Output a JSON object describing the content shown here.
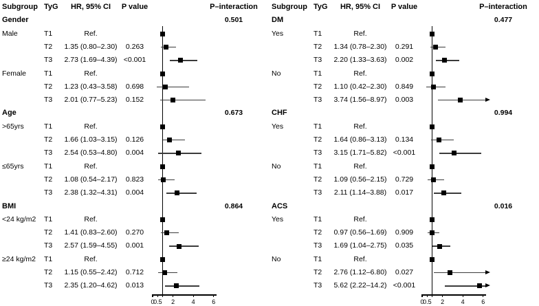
{
  "chart_data": {
    "type": "forest",
    "title": "",
    "columns": {
      "subgroup": "Subgroup",
      "tyg": "TyG",
      "hr_ci": "HR, 95% CI",
      "p_value": "P value",
      "p_interaction": "P–interaction"
    },
    "axis": {
      "min": 0,
      "max": 6,
      "ref_line": 1,
      "ticks": [
        0,
        0.5,
        1,
        2,
        4,
        6
      ],
      "tick_labels": [
        {
          "value": 0,
          "text": "0"
        },
        {
          "value": 0.5,
          "text": "0.5"
        },
        {
          "value": 2,
          "text": "2"
        },
        {
          "value": 4,
          "text": "4"
        },
        {
          "value": 6,
          "text": "6"
        }
      ]
    },
    "marker_color": "#000000",
    "ci_line_color": "#3a3a3a",
    "panels": [
      {
        "sections": [
          {
            "label": "Gender",
            "p_interaction": "0.501",
            "groups": [
              {
                "label": "Male",
                "rows": [
                  {
                    "tyg": "T1",
                    "hr_text": "Ref.",
                    "hr": 1
                  },
                  {
                    "tyg": "T2",
                    "hr_text": "1.35 (0.80–2.30)",
                    "p": "0.263",
                    "hr": 1.35,
                    "lo": 0.8,
                    "hi": 2.3
                  },
                  {
                    "tyg": "T3",
                    "hr_text": "2.73 (1.69–4.39)",
                    "p": "<0.001",
                    "hr": 2.73,
                    "lo": 1.69,
                    "hi": 4.39
                  }
                ]
              },
              {
                "label": "Female",
                "rows": [
                  {
                    "tyg": "T1",
                    "hr_text": "Ref.",
                    "hr": 1
                  },
                  {
                    "tyg": "T2",
                    "hr_text": "1.23 (0.43–3.58)",
                    "p": "0.698",
                    "hr": 1.23,
                    "lo": 0.43,
                    "hi": 3.58
                  },
                  {
                    "tyg": "T3",
                    "hr_text": "2.01 (0.77–5.23)",
                    "p": "0.152",
                    "hr": 2.01,
                    "lo": 0.77,
                    "hi": 5.23
                  }
                ]
              }
            ]
          },
          {
            "label": "Age",
            "p_interaction": "0.673",
            "groups": [
              {
                "label": ">65yrs",
                "rows": [
                  {
                    "tyg": "T1",
                    "hr_text": "Ref.",
                    "hr": 1
                  },
                  {
                    "tyg": "T2",
                    "hr_text": "1.66 (1.03–3.15)",
                    "p": "0.126",
                    "hr": 1.66,
                    "lo": 1.03,
                    "hi": 3.15
                  },
                  {
                    "tyg": "T3",
                    "hr_text": "2.54 (0.53–4.80)",
                    "p": "0.004",
                    "hr": 2.54,
                    "lo": 0.53,
                    "hi": 4.8
                  }
                ]
              },
              {
                "label": "≤65yrs",
                "rows": [
                  {
                    "tyg": "T1",
                    "hr_text": "Ref.",
                    "hr": 1
                  },
                  {
                    "tyg": "T2",
                    "hr_text": "1.08 (0.54–2.17)",
                    "p": "0.823",
                    "hr": 1.08,
                    "lo": 0.54,
                    "hi": 2.17
                  },
                  {
                    "tyg": "T3",
                    "hr_text": "2.38 (1.32–4.31)",
                    "p": "0.004",
                    "hr": 2.38,
                    "lo": 1.32,
                    "hi": 4.31
                  }
                ]
              }
            ]
          },
          {
            "label": "BMI",
            "p_interaction": "0.864",
            "groups": [
              {
                "label": "<24 kg/m2",
                "rows": [
                  {
                    "tyg": "T1",
                    "hr_text": "Ref.",
                    "hr": 1
                  },
                  {
                    "tyg": "T2",
                    "hr_text": "1.41 (0.83–2.60)",
                    "p": "0.270",
                    "hr": 1.41,
                    "lo": 0.83,
                    "hi": 2.6
                  },
                  {
                    "tyg": "T3",
                    "hr_text": "2.57 (1.59–4.55)",
                    "p": "0.001",
                    "hr": 2.57,
                    "lo": 1.59,
                    "hi": 4.55
                  }
                ]
              },
              {
                "label": "≥24 kg/m2",
                "rows": [
                  {
                    "tyg": "T1",
                    "hr_text": "Ref.",
                    "hr": 1
                  },
                  {
                    "tyg": "T2",
                    "hr_text": "1.15 (0.55–2.42)",
                    "p": "0.712",
                    "hr": 1.15,
                    "lo": 0.55,
                    "hi": 2.42
                  },
                  {
                    "tyg": "T3",
                    "hr_text": "2.35 (1.20–4.62)",
                    "p": "0.013",
                    "hr": 2.35,
                    "lo": 1.2,
                    "hi": 4.62
                  }
                ]
              }
            ]
          }
        ]
      },
      {
        "sections": [
          {
            "label": "DM",
            "p_interaction": "0.477",
            "groups": [
              {
                "label": "Yes",
                "rows": [
                  {
                    "tyg": "T1",
                    "hr_text": "Ref.",
                    "hr": 1
                  },
                  {
                    "tyg": "T2",
                    "hr_text": "1.34 (0.78–2.30)",
                    "p": "0.291",
                    "hr": 1.34,
                    "lo": 0.78,
                    "hi": 2.3
                  },
                  {
                    "tyg": "T3",
                    "hr_text": "2.20 (1.33–3.63)",
                    "p": "0.002",
                    "hr": 2.2,
                    "lo": 1.33,
                    "hi": 3.63
                  }
                ]
              },
              {
                "label": "No",
                "rows": [
                  {
                    "tyg": "T1",
                    "hr_text": "Ref.",
                    "hr": 1
                  },
                  {
                    "tyg": "T2",
                    "hr_text": "1.10 (0.42–2.30)",
                    "p": "0.849",
                    "hr": 1.1,
                    "lo": 0.42,
                    "hi": 2.3
                  },
                  {
                    "tyg": "T3",
                    "hr_text": "3.74 (1.56–8.97)",
                    "p": "0.003",
                    "hr": 3.74,
                    "lo": 1.56,
                    "hi": 8.97
                  }
                ]
              }
            ]
          },
          {
            "label": "CHF",
            "p_interaction": "0.994",
            "groups": [
              {
                "label": "Yes",
                "rows": [
                  {
                    "tyg": "T1",
                    "hr_text": "Ref.",
                    "hr": 1
                  },
                  {
                    "tyg": "T2",
                    "hr_text": "1.64 (0.86–3.13)",
                    "p": "0.134",
                    "hr": 1.64,
                    "lo": 0.86,
                    "hi": 3.13
                  },
                  {
                    "tyg": "T3",
                    "hr_text": "3.15 (1.71–5.82)",
                    "p": "<0.001",
                    "hr": 3.15,
                    "lo": 1.71,
                    "hi": 5.82
                  }
                ]
              },
              {
                "label": "No",
                "rows": [
                  {
                    "tyg": "T1",
                    "hr_text": "Ref.",
                    "hr": 1
                  },
                  {
                    "tyg": "T2",
                    "hr_text": "1.09 (0.56–2.15)",
                    "p": "0.729",
                    "hr": 1.09,
                    "lo": 0.56,
                    "hi": 2.15
                  },
                  {
                    "tyg": "T3",
                    "hr_text": "2.11 (1.14–3.88)",
                    "p": "0.017",
                    "hr": 2.11,
                    "lo": 1.14,
                    "hi": 3.88
                  }
                ]
              }
            ]
          },
          {
            "label": "ACS",
            "p_interaction": "0.016",
            "groups": [
              {
                "label": "Yes",
                "rows": [
                  {
                    "tyg": "T1",
                    "hr_text": "Ref.",
                    "hr": 1
                  },
                  {
                    "tyg": "T2",
                    "hr_text": "0.97 (0.56–1.69)",
                    "p": "0.909",
                    "hr": 0.97,
                    "lo": 0.56,
                    "hi": 1.69
                  },
                  {
                    "tyg": "T3",
                    "hr_text": "1.69 (1.04–2.75)",
                    "p": "0.035",
                    "hr": 1.69,
                    "lo": 1.04,
                    "hi": 2.75
                  }
                ]
              },
              {
                "label": "No",
                "rows": [
                  {
                    "tyg": "T1",
                    "hr_text": "Ref.",
                    "hr": 1
                  },
                  {
                    "tyg": "T2",
                    "hr_text": "2.76 (1.12–6.80)",
                    "p": "0.027",
                    "hr": 2.76,
                    "lo": 1.12,
                    "hi": 6.8
                  },
                  {
                    "tyg": "T3",
                    "hr_text": "5.62 (2.22–14.2)",
                    "p": "<0.001",
                    "hr": 5.62,
                    "lo": 2.22,
                    "hi": 14.2
                  }
                ]
              }
            ]
          }
        ]
      }
    ]
  }
}
